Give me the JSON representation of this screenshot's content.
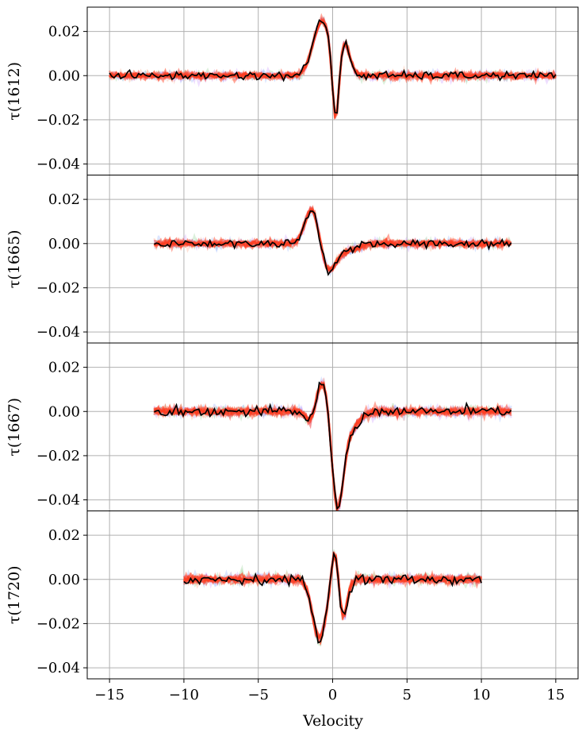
{
  "chart_data": {
    "type": "line",
    "xlabel": "Velocity",
    "xlim": [
      -16.5,
      16.5
    ],
    "ylim": [
      -0.045,
      0.031
    ],
    "xticks": [
      -15,
      -10,
      -5,
      0,
      5,
      10,
      15
    ],
    "xtick_labels": [
      "−15",
      "−10",
      "−5",
      "0",
      "5",
      "10",
      "15"
    ],
    "yticks": [
      0.02,
      0.0,
      -0.02,
      -0.04
    ],
    "ytick_labels": [
      "0.02",
      "0.00",
      "−0.02",
      "−0.04"
    ],
    "grid": true,
    "colors": {
      "data": "#000000",
      "posterior": "#ff3b1f",
      "posterior_faint": [
        "#9bb7ff",
        "#cfa0ff",
        "#9ad39a",
        "#ffb090"
      ]
    },
    "panels": [
      {
        "ylabel": "τ(1612)",
        "x_range": [
          -15,
          15
        ],
        "features": [
          [
            -0.7,
            0.025,
            0.6
          ],
          [
            0.2,
            -0.03,
            0.22
          ],
          [
            0.8,
            0.014,
            0.35
          ]
        ],
        "noise_rms": 0.0009
      },
      {
        "ylabel": "τ(1665)",
        "x_range": [
          -12,
          12
        ],
        "features": [
          [
            -1.4,
            0.016,
            0.45
          ],
          [
            -0.3,
            -0.01,
            0.45
          ],
          [
            0.6,
            -0.004,
            0.9
          ]
        ],
        "noise_rms": 0.0009
      },
      {
        "ylabel": "τ(1667)",
        "x_range": [
          -12,
          12
        ],
        "features": [
          [
            -1.5,
            -0.005,
            0.3
          ],
          [
            -0.6,
            0.015,
            0.42
          ],
          [
            0.3,
            -0.038,
            0.38
          ],
          [
            0.9,
            -0.01,
            0.7
          ]
        ],
        "noise_rms": 0.0011
      },
      {
        "ylabel": "τ(1720)",
        "x_range": [
          -10,
          10
        ],
        "features": [
          [
            -0.9,
            -0.027,
            0.45
          ],
          [
            0.15,
            0.016,
            0.22
          ],
          [
            0.7,
            -0.017,
            0.28
          ]
        ],
        "noise_rms": 0.0011
      }
    ]
  }
}
